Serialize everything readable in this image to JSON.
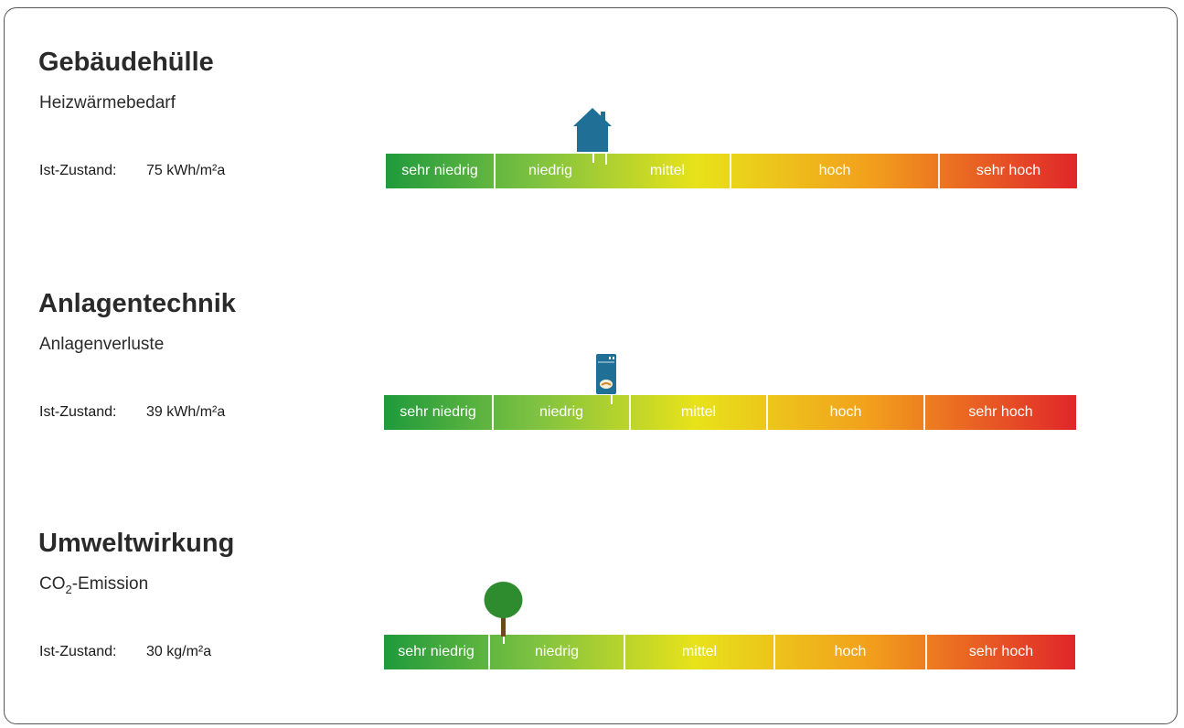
{
  "scale_labels": [
    "sehr niedrig",
    "niedrig",
    "mittel",
    "hoch",
    "sehr hoch"
  ],
  "ist_label": "Ist-Zustand:",
  "sections": [
    {
      "title": "Gebäudehülle",
      "subtitle": "Heizwärmebedarf",
      "value": "75 kWh/m²a",
      "icon": "house-icon",
      "icon_color": "#1f6f96"
    },
    {
      "title": "Anlagentechnik",
      "subtitle": "Anlagenverluste",
      "value": "39 kWh/m²a",
      "icon": "boiler-icon",
      "icon_color": "#1f6f96"
    },
    {
      "title": "Umweltwirkung",
      "subtitle_main": "CO",
      "subtitle_sub": "2",
      "subtitle_rest": "-Emission",
      "value": "30 kg/m²a",
      "icon": "tree-icon",
      "icon_color": "#2e8b2e"
    }
  ],
  "colors": {
    "sehr_niedrig": "#1f9a3c",
    "niedrig": "#7fc241",
    "mittel": "#e8e21a",
    "hoch": "#f2a01c",
    "sehr_hoch": "#e0262a"
  }
}
